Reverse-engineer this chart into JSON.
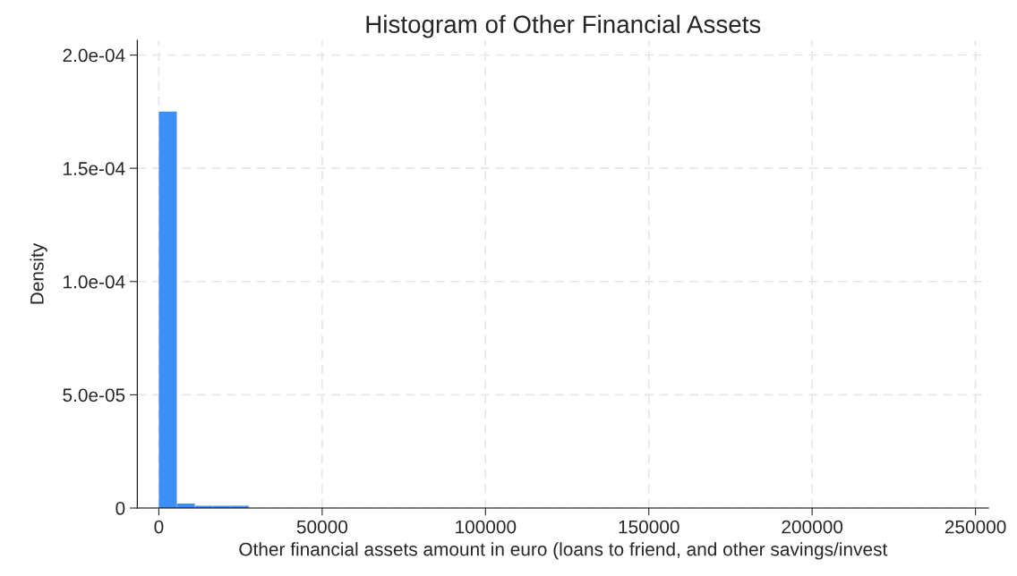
{
  "chart_data": {
    "type": "histogram",
    "title": "Histogram of Other Financial Assets",
    "xlabel": "Other financial assets amount in euro (loans to friend, and other savings/invest",
    "ylabel": "Density",
    "color": "#3b8ff7",
    "bins": [
      0,
      5500,
      11000,
      16500,
      22000,
      27500,
      33000,
      38500,
      44000,
      49500,
      55000,
      60500,
      66000,
      71500,
      77000,
      82500,
      88000,
      93500,
      99000,
      104500,
      110000,
      115500,
      121000,
      126500,
      132000,
      137500,
      143000,
      148500,
      154000,
      159500,
      165000,
      170500,
      176000,
      181500,
      187000,
      192500,
      198000,
      203500,
      209000,
      214500,
      220000,
      225500
    ],
    "values": [
      0.000175,
      2e-06,
      1e-06,
      1e-06,
      1e-06,
      0,
      0,
      0,
      0,
      0,
      0,
      0,
      0,
      0,
      0,
      0,
      0,
      0,
      0,
      0,
      0,
      0,
      0,
      0,
      0,
      0,
      0,
      0,
      0,
      0,
      0,
      0,
      0,
      0,
      0,
      0,
      0,
      0,
      0,
      0,
      0
    ],
    "xlim": [
      -6600,
      254000
    ],
    "ylim": [
      0,
      0.0002065
    ],
    "xticks": [
      0,
      50000,
      100000,
      150000,
      200000,
      250000
    ],
    "yticks": [
      0,
      {
        "value": 5e-05,
        "label": "5.0e-05"
      },
      {
        "value": 0.0001,
        "label": "1.0e-04"
      },
      {
        "value": 0.00015,
        "label": "1.5e-04"
      },
      {
        "value": 0.0002,
        "label": "2.0e-04"
      }
    ],
    "grid": true
  }
}
